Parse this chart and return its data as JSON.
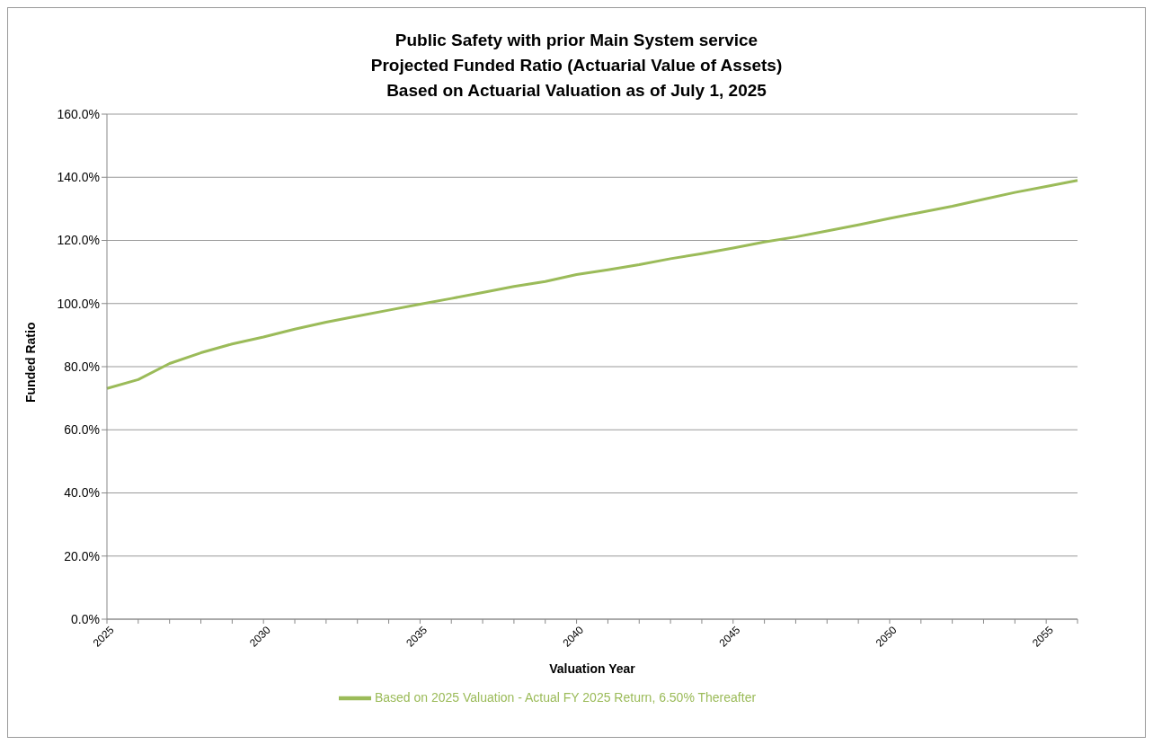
{
  "chart_data": {
    "type": "line",
    "title": "Public Safety with prior Main System service\nProjected Funded Ratio (Actuarial Value of Assets)\nBased on Actuarial Valuation as of July 1, 2025",
    "xlabel": "Valuation Year",
    "ylabel": "Funded Ratio",
    "categories": [
      "2025",
      null,
      null,
      null,
      null,
      "2030",
      null,
      null,
      null,
      null,
      "2035",
      null,
      null,
      null,
      null,
      "2040",
      null,
      null,
      null,
      null,
      "2045",
      null,
      null,
      null,
      null,
      "2050",
      null,
      null,
      null,
      null,
      "2055",
      null
    ],
    "series": [
      {
        "name": "Based on 2025 Valuation - Actual FY 2025 Return, 6.50% Thereafter",
        "color": "#9bbb59",
        "values": [
          73.1,
          75.9,
          81,
          84.4,
          87.2,
          89.4,
          91.9,
          94.1,
          96,
          97.9,
          99.8,
          101.6,
          103.5,
          105.4,
          107,
          109.2,
          110.7,
          112.3,
          114.2,
          115.8,
          117.6,
          119.5,
          121.1,
          123,
          124.9,
          127,
          128.9,
          130.8,
          133,
          135.2,
          137.1,
          139
        ]
      }
    ],
    "ylim": [
      0,
      160
    ],
    "yticks": [
      {
        "value": 0,
        "label": "0.0%"
      },
      {
        "value": 20,
        "label": "20.0%"
      },
      {
        "value": 40,
        "label": "40.0%"
      },
      {
        "value": 60,
        "label": "60.0%"
      },
      {
        "value": 80,
        "label": "80.0%"
      },
      {
        "value": 100,
        "label": "100.0%"
      },
      {
        "value": 120,
        "label": "120.0%"
      },
      {
        "value": 140,
        "label": "140.0%"
      },
      {
        "value": 160,
        "label": "160.0%"
      }
    ],
    "grid": "y",
    "legend": "bottom",
    "marker": "none",
    "line_style": "solid"
  }
}
